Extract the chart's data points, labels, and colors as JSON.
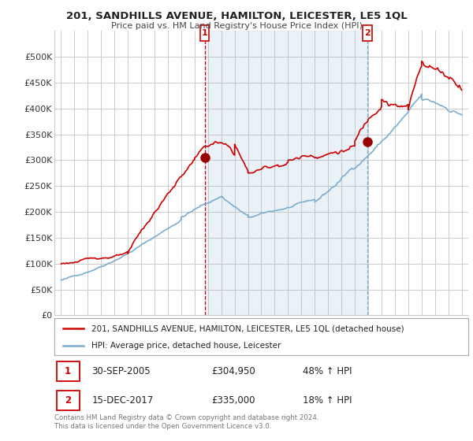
{
  "title": "201, SANDHILLS AVENUE, HAMILTON, LEICESTER, LE5 1QL",
  "subtitle": "Price paid vs. HM Land Registry's House Price Index (HPI)",
  "legend_line1": "201, SANDHILLS AVENUE, HAMILTON, LEICESTER, LE5 1QL (detached house)",
  "legend_line2": "HPI: Average price, detached house, Leicester",
  "transaction1_date": "30-SEP-2005",
  "transaction1_price": "£304,950",
  "transaction1_hpi": "48% ↑ HPI",
  "transaction2_date": "15-DEC-2017",
  "transaction2_price": "£335,000",
  "transaction2_hpi": "18% ↑ HPI",
  "footer": "Contains HM Land Registry data © Crown copyright and database right 2024.\nThis data is licensed under the Open Government Licence v3.0.",
  "vline1_x": 2005.75,
  "vline2_x": 2017.958,
  "marker1_x": 2005.75,
  "marker1_y": 304950,
  "marker2_x": 2017.958,
  "marker2_y": 335000,
  "ylim": [
    0,
    550000
  ],
  "xlim": [
    1994.5,
    2025.5
  ],
  "red_color": "#cc0000",
  "blue_color": "#7aadcf",
  "vline1_color": "#cc0000",
  "vline2_color": "#7aadcf",
  "shade_color": "#ddeeff",
  "grid_color": "#cccccc",
  "background_color": "#ffffff",
  "marker_fill": "#990000"
}
